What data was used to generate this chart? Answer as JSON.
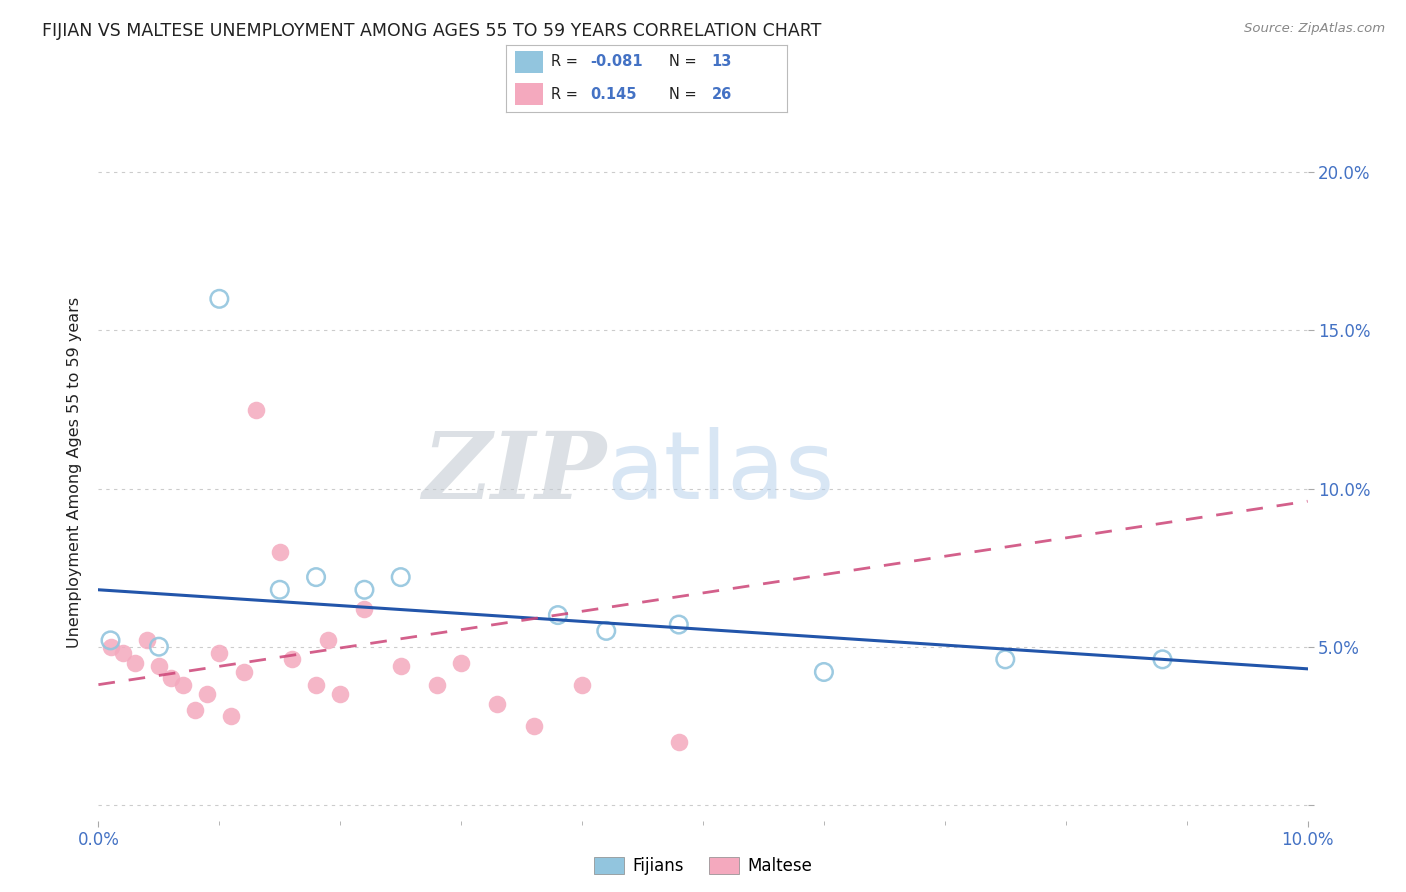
{
  "title": "FIJIAN VS MALTESE UNEMPLOYMENT AMONG AGES 55 TO 59 YEARS CORRELATION CHART",
  "source": "Source: ZipAtlas.com",
  "ylabel": "Unemployment Among Ages 55 to 59 years",
  "ytick_values": [
    0.0,
    0.05,
    0.1,
    0.15,
    0.2
  ],
  "xlim": [
    0.0,
    0.1
  ],
  "ylim": [
    -0.005,
    0.215
  ],
  "fijian_color": "#92c5de",
  "maltese_color": "#f4a9be",
  "fijian_line_color": "#2255aa",
  "maltese_line_color": "#cc4477",
  "fijian_R": "-0.081",
  "fijian_N": "13",
  "maltese_R": "0.145",
  "maltese_N": "26",
  "fijian_x": [
    0.001,
    0.005,
    0.01,
    0.015,
    0.018,
    0.022,
    0.025,
    0.038,
    0.042,
    0.048,
    0.06,
    0.075,
    0.088
  ],
  "fijian_y": [
    0.052,
    0.05,
    0.16,
    0.068,
    0.072,
    0.068,
    0.072,
    0.06,
    0.055,
    0.057,
    0.042,
    0.046,
    0.046
  ],
  "maltese_x": [
    0.001,
    0.002,
    0.003,
    0.004,
    0.005,
    0.006,
    0.007,
    0.008,
    0.009,
    0.01,
    0.011,
    0.012,
    0.013,
    0.015,
    0.016,
    0.018,
    0.019,
    0.02,
    0.022,
    0.025,
    0.028,
    0.03,
    0.033,
    0.036,
    0.04,
    0.048
  ],
  "maltese_y": [
    0.05,
    0.048,
    0.045,
    0.052,
    0.044,
    0.04,
    0.038,
    0.03,
    0.035,
    0.048,
    0.028,
    0.042,
    0.125,
    0.08,
    0.046,
    0.038,
    0.052,
    0.035,
    0.062,
    0.044,
    0.038,
    0.045,
    0.032,
    0.025,
    0.038,
    0.02
  ],
  "background_color": "#ffffff",
  "grid_color": "#cccccc",
  "watermark_zip": "ZIP",
  "watermark_atlas": "atlas",
  "title_color": "#222222",
  "tick_color": "#4472c4",
  "legend_border_color": "#bbbbbb"
}
